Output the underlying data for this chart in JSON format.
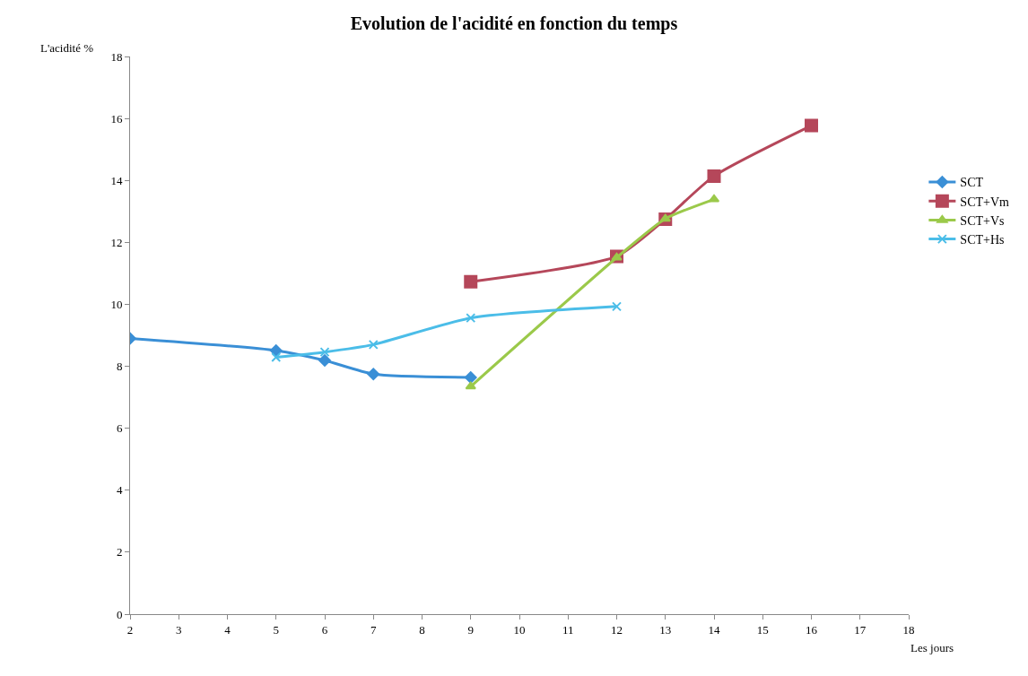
{
  "chart_data": {
    "type": "line",
    "title": "Evolution de l'acidité en fonction du temps",
    "xlabel": "Les jours",
    "ylabel": "L'acidité %",
    "xlim": [
      2,
      18
    ],
    "xticks": [
      2,
      3,
      4,
      5,
      6,
      7,
      8,
      9,
      10,
      11,
      12,
      13,
      14,
      15,
      16,
      17,
      18
    ],
    "ylim": [
      0,
      18
    ],
    "yticks": [
      0,
      2,
      4,
      6,
      8,
      10,
      12,
      14,
      16,
      18
    ],
    "grid": false,
    "legend": "right",
    "series": [
      {
        "name": "SCT",
        "color": "#3a8fd6",
        "marker": "diamond",
        "x": [
          2,
          5,
          6,
          7,
          9
        ],
        "values": [
          8.9,
          8.51,
          8.19,
          7.75,
          7.64
        ]
      },
      {
        "name": "SCT+Vm",
        "color": "#b5475a",
        "marker": "square",
        "x": [
          9,
          12,
          13,
          14,
          16
        ],
        "values": [
          10.73,
          11.55,
          12.75,
          14.14,
          15.77
        ]
      },
      {
        "name": "SCT+Vs",
        "color": "#9bc94a",
        "marker": "triangle",
        "x": [
          9,
          12,
          13,
          14
        ],
        "values": [
          7.35,
          11.51,
          12.76,
          13.39
        ]
      },
      {
        "name": "SCT+Hs",
        "color": "#4bbde8",
        "marker": "cross",
        "x": [
          5,
          6,
          7,
          9,
          12
        ],
        "values": [
          8.29,
          8.46,
          8.7,
          9.56,
          9.93
        ]
      }
    ]
  }
}
